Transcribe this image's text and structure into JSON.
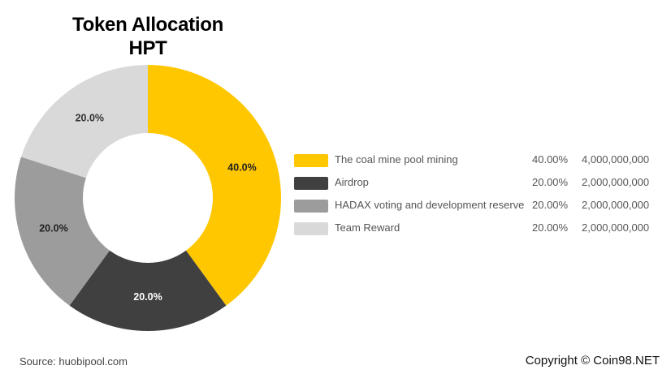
{
  "chart_data": {
    "type": "pie",
    "title": "Token Allocation",
    "subtitle": "HPT",
    "slices": [
      {
        "label": "The coal mine pool mining",
        "value": 40.0,
        "percent_label": "40.0%",
        "legend_percent": "40.00%",
        "amount": "4,000,000,000",
        "color": "#FFC700",
        "text_color": "#222222"
      },
      {
        "label": "Airdrop",
        "value": 20.0,
        "percent_label": "20.0%",
        "legend_percent": "20.00%",
        "amount": "2,000,000,000",
        "color": "#404040",
        "text_color": "#ffffff"
      },
      {
        "label": "HADAX voting and development reserve",
        "value": 20.0,
        "percent_label": "20.0%",
        "legend_percent": "20.00%",
        "amount": "2,000,000,000",
        "color": "#9C9C9C",
        "text_color": "#222222"
      },
      {
        "label": "Team Reward",
        "value": 20.0,
        "percent_label": "20.0%",
        "legend_percent": "20.00%",
        "amount": "2,000,000,000",
        "color": "#D9D9D9",
        "text_color": "#333333"
      }
    ],
    "legend_position": "right"
  },
  "footer": {
    "source": "Source: huobipool.com",
    "copyright": "Copyright © Coin98.NET"
  }
}
